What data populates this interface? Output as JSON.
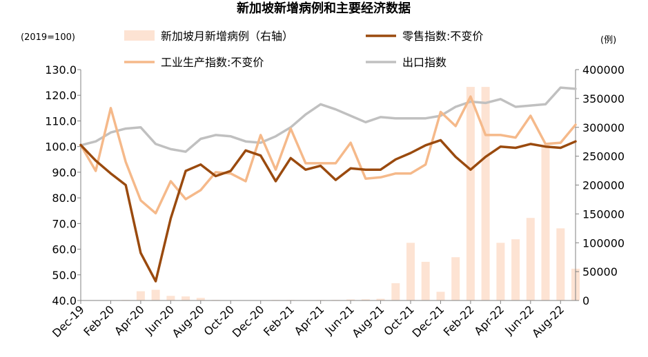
{
  "chart_data": {
    "type": "bar+line",
    "title": "新加坡新增病例和主要经济数据",
    "left_unit": "(2019=100)",
    "right_unit": "(例)",
    "x": [
      "Dec-19",
      "Jan-20",
      "Feb-20",
      "Mar-20",
      "Apr-20",
      "May-20",
      "Jun-20",
      "Jul-20",
      "Aug-20",
      "Sep-20",
      "Oct-20",
      "Nov-20",
      "Dec-20",
      "Jan-21",
      "Feb-21",
      "Mar-21",
      "Apr-21",
      "May-21",
      "Jun-21",
      "Jul-21",
      "Aug-21",
      "Sep-21",
      "Oct-21",
      "Nov-21",
      "Dec-21",
      "Jan-22",
      "Feb-22",
      "Mar-22",
      "Apr-22",
      "May-22",
      "Jun-22",
      "Jul-22",
      "Aug-22",
      "Sep-22"
    ],
    "x_tick_labels": [
      "Dec-19",
      "Feb-20",
      "Apr-20",
      "Jun-20",
      "Aug-20",
      "Oct-20",
      "Dec-20",
      "Feb-21",
      "Apr-21",
      "Jun-21",
      "Aug-21",
      "Oct-21",
      "Dec-21",
      "Feb-22",
      "Apr-22",
      "Jun-22",
      "Aug-22"
    ],
    "yleft": {
      "ticks": [
        "130.0",
        "120.0",
        "110.0",
        "100.0",
        "90.0",
        "80.0",
        "70.0",
        "60.0",
        "50.0",
        "40.0"
      ],
      "ylim": [
        40,
        130
      ]
    },
    "yright": {
      "ticks": [
        "400000",
        "350000",
        "300000",
        "250000",
        "200000",
        "150000",
        "100000",
        "50000",
        "0"
      ],
      "ylim": [
        0,
        400000
      ]
    },
    "legend": {
      "bar": "新加坡月新增病例（右轴）",
      "retail": "零售指数:不变价",
      "industrial": "工业生产指数:不变价",
      "exports": "出口指数"
    },
    "series": [
      {
        "name": "新加坡月新增病例（右轴）",
        "axis": "right",
        "kind": "bar",
        "color": "#fde3d3",
        "values": [
          0,
          0,
          500,
          1000,
          16000,
          18500,
          8000,
          7000,
          4500,
          1000,
          500,
          300,
          300,
          900,
          1000,
          700,
          800,
          900,
          1800,
          2000,
          3000,
          30000,
          100000,
          67000,
          15000,
          75000,
          370000,
          370000,
          100000,
          106000,
          143000,
          270000,
          125000,
          55000
        ]
      },
      {
        "name": "零售指数:不变价",
        "axis": "left",
        "kind": "line",
        "color": "#9a4a0e",
        "values": [
          100.6,
          94.5,
          89.5,
          85.0,
          58.5,
          47.5,
          72.0,
          90.5,
          93.0,
          88.5,
          90.5,
          98.5,
          96.5,
          86.5,
          95.5,
          91.0,
          92.5,
          87.0,
          91.5,
          91.0,
          91.0,
          95.0,
          97.5,
          100.5,
          102.5,
          96.0,
          91.0,
          96.0,
          100.0,
          99.5,
          101.0,
          100.0,
          99.5,
          102.0
        ]
      },
      {
        "name": "工业生产指数:不变价",
        "axis": "left",
        "kind": "line",
        "color": "#f5b98a",
        "values": [
          100.6,
          90.5,
          115.0,
          94.0,
          79.0,
          74.0,
          86.5,
          79.5,
          83.0,
          90.0,
          89.5,
          86.5,
          104.5,
          91.0,
          107.0,
          93.5,
          93.5,
          93.5,
          101.5,
          87.5,
          88.0,
          89.5,
          89.5,
          93.0,
          113.5,
          108.0,
          119.5,
          104.5,
          104.5,
          103.5,
          112.0,
          101.0,
          101.5,
          108.5
        ]
      },
      {
        "name": "出口指数",
        "axis": "left",
        "kind": "line",
        "color": "#c0c0c0",
        "values": [
          100.5,
          102.0,
          105.5,
          107.0,
          107.5,
          101.0,
          99.0,
          98.0,
          103.0,
          104.5,
          104.0,
          102.0,
          101.5,
          104.0,
          107.5,
          112.5,
          116.5,
          114.5,
          112.0,
          109.5,
          111.5,
          111.0,
          111.0,
          111.0,
          112.0,
          115.5,
          117.5,
          117.0,
          118.5,
          115.5,
          116.0,
          116.5,
          123.0,
          122.5
        ]
      }
    ],
    "grid": false,
    "legend_placement": "top"
  }
}
